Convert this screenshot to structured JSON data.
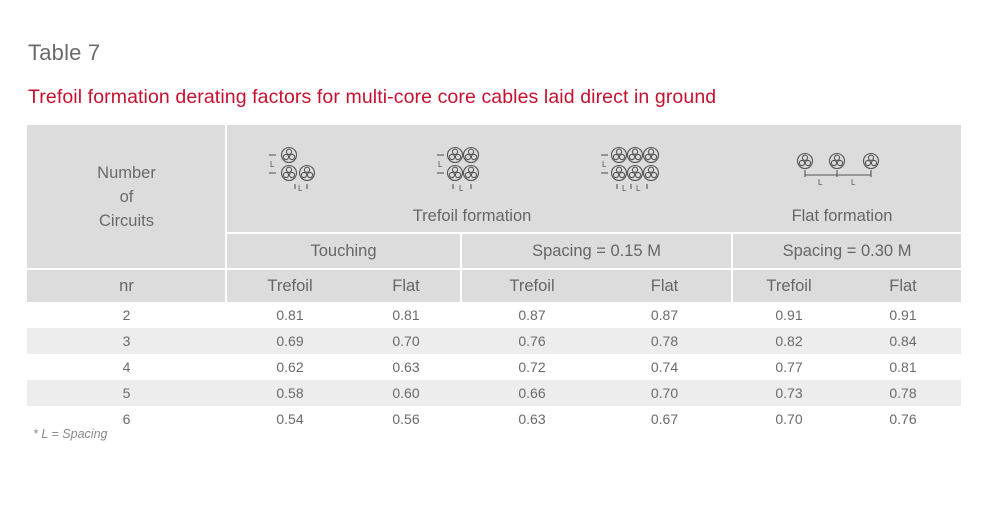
{
  "table_label": "Table 7",
  "title": "Trefoil formation derating factors for multi-core core cables laid direct in ground",
  "header": {
    "circuits_label_lines": [
      "Number",
      "of",
      "Circuits"
    ],
    "trefoil_formation": "Trefoil formation",
    "flat_formation": "Flat formation",
    "groups": [
      "Touching",
      "Spacing = 0.15 M",
      "Spacing = 0.30 M"
    ],
    "nr": "nr",
    "sub_columns": [
      "Trefoil",
      "Flat",
      "Trefoil",
      "Flat",
      "Trefoil",
      "Flat"
    ]
  },
  "diagram_labels": {
    "spacing_symbol": "L"
  },
  "rows": [
    {
      "nr": "2",
      "values": [
        "0.81",
        "0.81",
        "0.87",
        "0.87",
        "0.91",
        "0.91"
      ]
    },
    {
      "nr": "3",
      "values": [
        "0.69",
        "0.70",
        "0.76",
        "0.78",
        "0.82",
        "0.84"
      ]
    },
    {
      "nr": "4",
      "values": [
        "0.62",
        "0.63",
        "0.72",
        "0.74",
        "0.77",
        "0.81"
      ]
    },
    {
      "nr": "5",
      "values": [
        "0.58",
        "0.60",
        "0.66",
        "0.70",
        "0.73",
        "0.78"
      ]
    },
    {
      "nr": "6",
      "values": [
        "0.54",
        "0.56",
        "0.63",
        "0.67",
        "0.70",
        "0.76"
      ]
    }
  ],
  "footnote": "* L = Spacing"
}
